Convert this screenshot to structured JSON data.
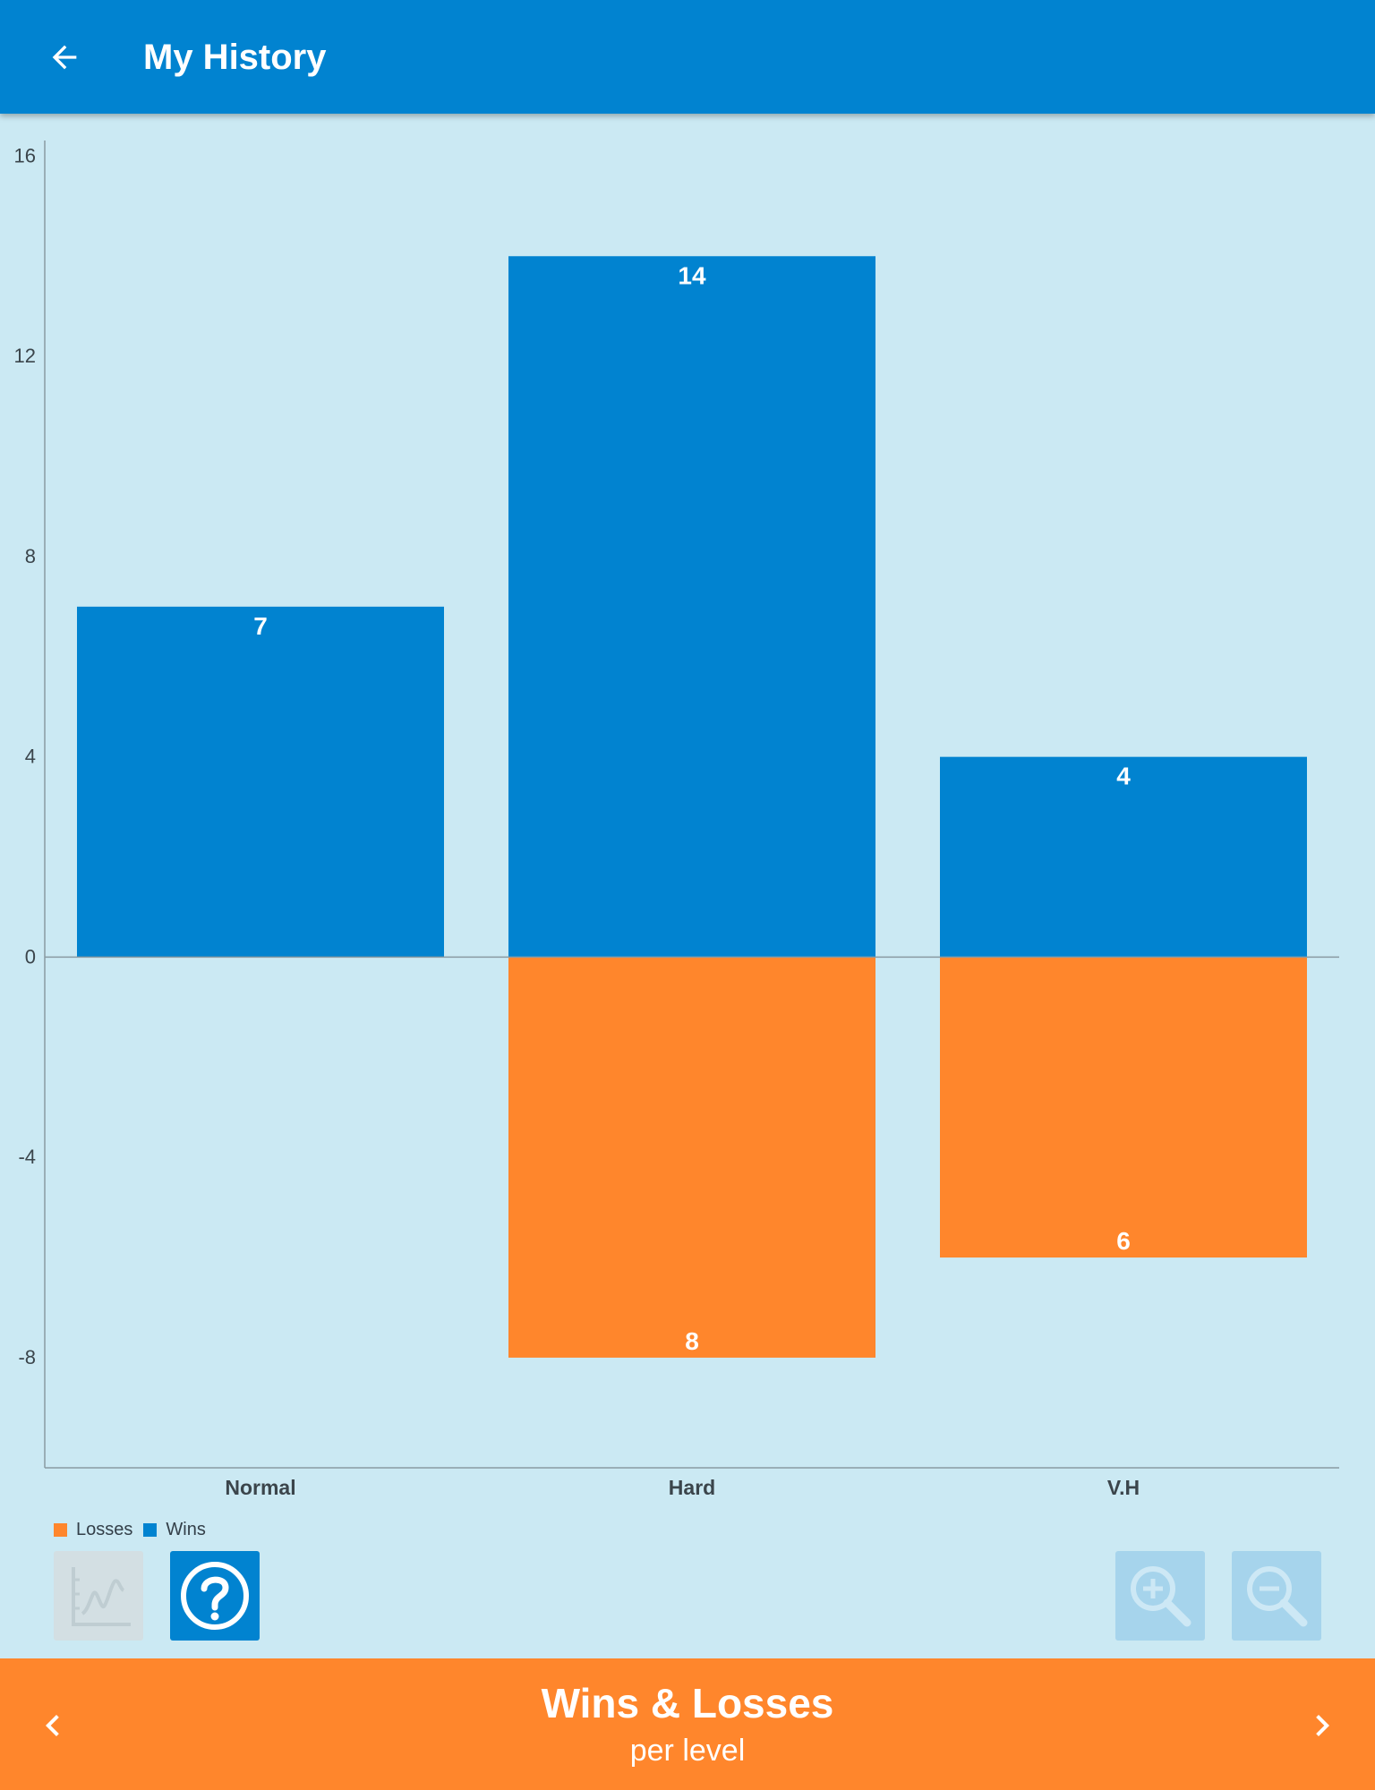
{
  "header": {
    "title": "My History",
    "back_icon": "arrow-left-icon"
  },
  "chart_data": {
    "type": "bar",
    "stacked": true,
    "categories": [
      "Normal",
      "Hard",
      "V.H"
    ],
    "series": [
      {
        "name": "Wins",
        "color": "#0183d0",
        "values": [
          7,
          14,
          4
        ]
      },
      {
        "name": "Losses",
        "color": "#ff862c",
        "values": [
          0,
          -8,
          -6
        ]
      }
    ],
    "data_labels": {
      "Wins": [
        "7",
        "14",
        "4"
      ],
      "Losses": [
        "",
        "8",
        "6"
      ]
    },
    "y_ticks": [
      16,
      12,
      8,
      4,
      0,
      -4,
      -8
    ],
    "ylim": [
      -10.2,
      16.4
    ],
    "grid": false,
    "legend": {
      "placement": "bottom-left",
      "entries": [
        "Losses",
        "Wins"
      ]
    }
  },
  "toolbar": {
    "chart_type_icon": "line-chart-icon",
    "help_icon": "help-circle-icon",
    "zoom_in_icon": "zoom-in-icon",
    "zoom_out_icon": "zoom-out-icon"
  },
  "footer": {
    "title": "Wins & Losses",
    "subtitle": "per level",
    "prev_icon": "chevron-left-icon",
    "next_icon": "chevron-right-icon"
  },
  "colors": {
    "app_bar": "#0183d0",
    "background": "#cbe9f3",
    "footer": "#ff862c",
    "wins": "#0183d0",
    "losses": "#ff862c"
  }
}
